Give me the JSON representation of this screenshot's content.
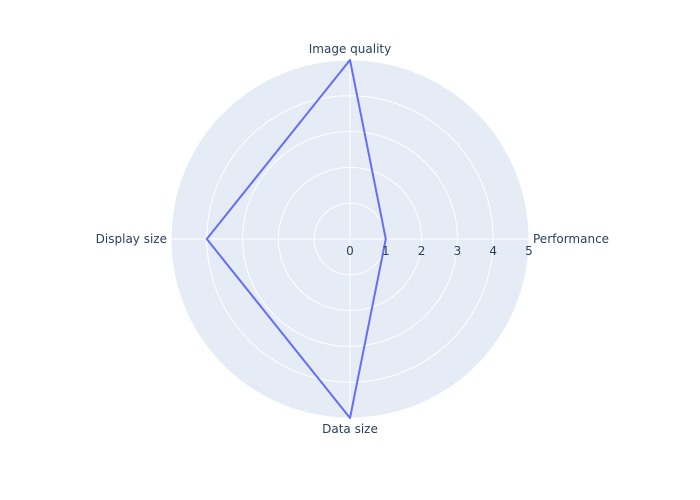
{
  "chart_data": {
    "type": "radar",
    "categories": [
      "Performance",
      "Image quality",
      "Display size",
      "Data size"
    ],
    "series": [
      {
        "values": [
          1,
          5,
          4,
          5
        ],
        "color": "#636efa"
      }
    ],
    "radial_range": [
      0,
      5
    ],
    "radial_ticks": [
      0,
      1,
      2,
      3,
      4,
      5
    ],
    "grid": true,
    "legend": "none",
    "colors": {
      "background": "#e5ecf6",
      "grid": "#ffffff",
      "text": "#2a3f5f"
    }
  }
}
